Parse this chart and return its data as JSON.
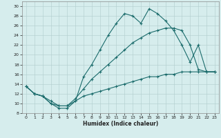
{
  "title": "",
  "xlabel": "Humidex (Indice chaleur)",
  "xlim": [
    -0.5,
    23.5
  ],
  "ylim": [
    8,
    31
  ],
  "yticks": [
    8,
    10,
    12,
    14,
    16,
    18,
    20,
    22,
    24,
    26,
    28,
    30
  ],
  "xticks": [
    0,
    1,
    2,
    3,
    4,
    5,
    6,
    7,
    8,
    9,
    10,
    11,
    12,
    13,
    14,
    15,
    16,
    17,
    18,
    19,
    20,
    21,
    22,
    23
  ],
  "background_color": "#d6eded",
  "grid_color": "#b0cccc",
  "line_color": "#1a6b6b",
  "line1_y": [
    13.5,
    12.0,
    11.5,
    10.0,
    9.0,
    9.0,
    10.5,
    15.5,
    18.0,
    21.0,
    24.0,
    26.5,
    28.5,
    28.0,
    26.5,
    29.5,
    28.5,
    27.0,
    25.0,
    22.0,
    18.5,
    22.0,
    16.5,
    16.5
  ],
  "line2_y": [
    13.5,
    12.0,
    11.5,
    10.5,
    9.5,
    9.5,
    11.0,
    13.0,
    15.0,
    16.5,
    18.0,
    19.5,
    21.0,
    22.5,
    23.5,
    24.5,
    25.0,
    25.5,
    25.5,
    25.0,
    22.0,
    17.0,
    16.5,
    16.5
  ],
  "line3_y": [
    13.5,
    12.0,
    11.5,
    10.0,
    9.5,
    9.5,
    10.5,
    11.5,
    12.0,
    12.5,
    13.0,
    13.5,
    14.0,
    14.5,
    15.0,
    15.5,
    15.5,
    16.0,
    16.0,
    16.5,
    16.5,
    16.5,
    16.5,
    16.5
  ]
}
